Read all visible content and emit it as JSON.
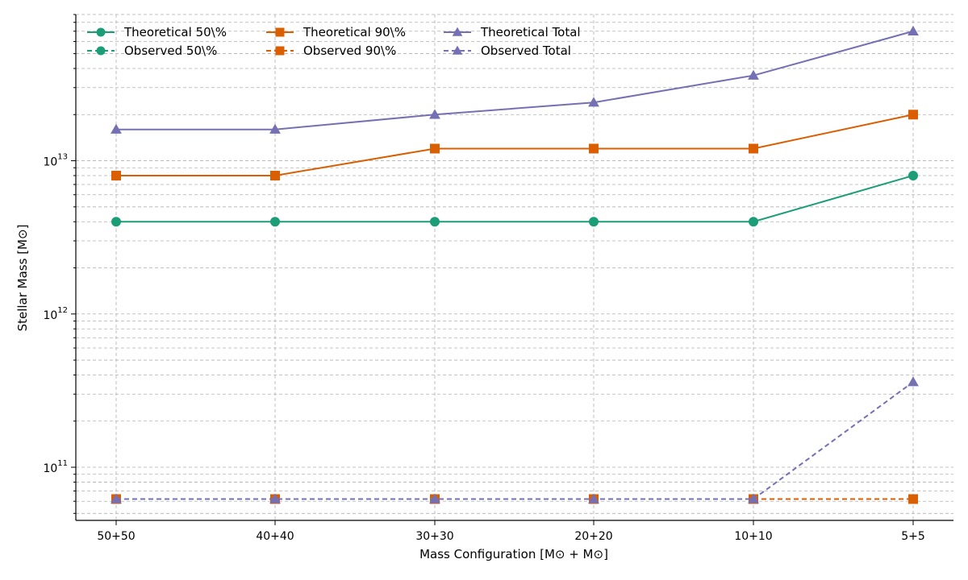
{
  "chart_data": {
    "type": "line",
    "title": "",
    "xlabel": "Mass Configuration [M⊙ + M⊙]",
    "ylabel": "Stellar Mass [M⊙]",
    "yscale": "log",
    "ylim": [
      45000000000.0,
      90000000000000.0
    ],
    "grid": true,
    "legend_position": "top-left",
    "categories": [
      "50+50",
      "40+40",
      "30+30",
      "20+20",
      "10+10",
      "5+5"
    ],
    "y_ticks": [
      {
        "value": 100000000000.0,
        "label_base": "10",
        "label_exp": "11"
      },
      {
        "value": 1000000000000.0,
        "label_base": "10",
        "label_exp": "12"
      },
      {
        "value": 10000000000000.0,
        "label_base": "10",
        "label_exp": "13"
      }
    ],
    "series": [
      {
        "name": "Theoretical 50\\%",
        "color": "#1b9e77",
        "marker": "circle",
        "dashed": false,
        "values": [
          4000000000000.0,
          4000000000000.0,
          4000000000000.0,
          4000000000000.0,
          4000000000000.0,
          8000000000000.0
        ]
      },
      {
        "name": "Observed 50\\%",
        "color": "#1b9e77",
        "marker": "circle",
        "dashed": true,
        "values": [
          62000000000.0,
          62000000000.0,
          62000000000.0,
          62000000000.0,
          62000000000.0,
          62000000000.0
        ]
      },
      {
        "name": "Theoretical 90\\%",
        "color": "#d95f02",
        "marker": "square",
        "dashed": false,
        "values": [
          8000000000000.0,
          8000000000000.0,
          12000000000000.0,
          12000000000000.0,
          12000000000000.0,
          20000000000000.0
        ]
      },
      {
        "name": "Observed 90\\%",
        "color": "#d95f02",
        "marker": "square",
        "dashed": true,
        "values": [
          62000000000.0,
          62000000000.0,
          62000000000.0,
          62000000000.0,
          62000000000.0,
          62000000000.0
        ]
      },
      {
        "name": "Theoretical Total",
        "color": "#7570b3",
        "marker": "triangle",
        "dashed": false,
        "values": [
          16000000000000.0,
          16000000000000.0,
          20000000000000.0,
          24000000000000.0,
          36000000000000.0,
          70000000000000.0
        ]
      },
      {
        "name": "Observed Total",
        "color": "#7570b3",
        "marker": "triangle",
        "dashed": true,
        "values": [
          62000000000.0,
          62000000000.0,
          62000000000.0,
          62000000000.0,
          62000000000.0,
          360000000000.0
        ]
      }
    ]
  }
}
